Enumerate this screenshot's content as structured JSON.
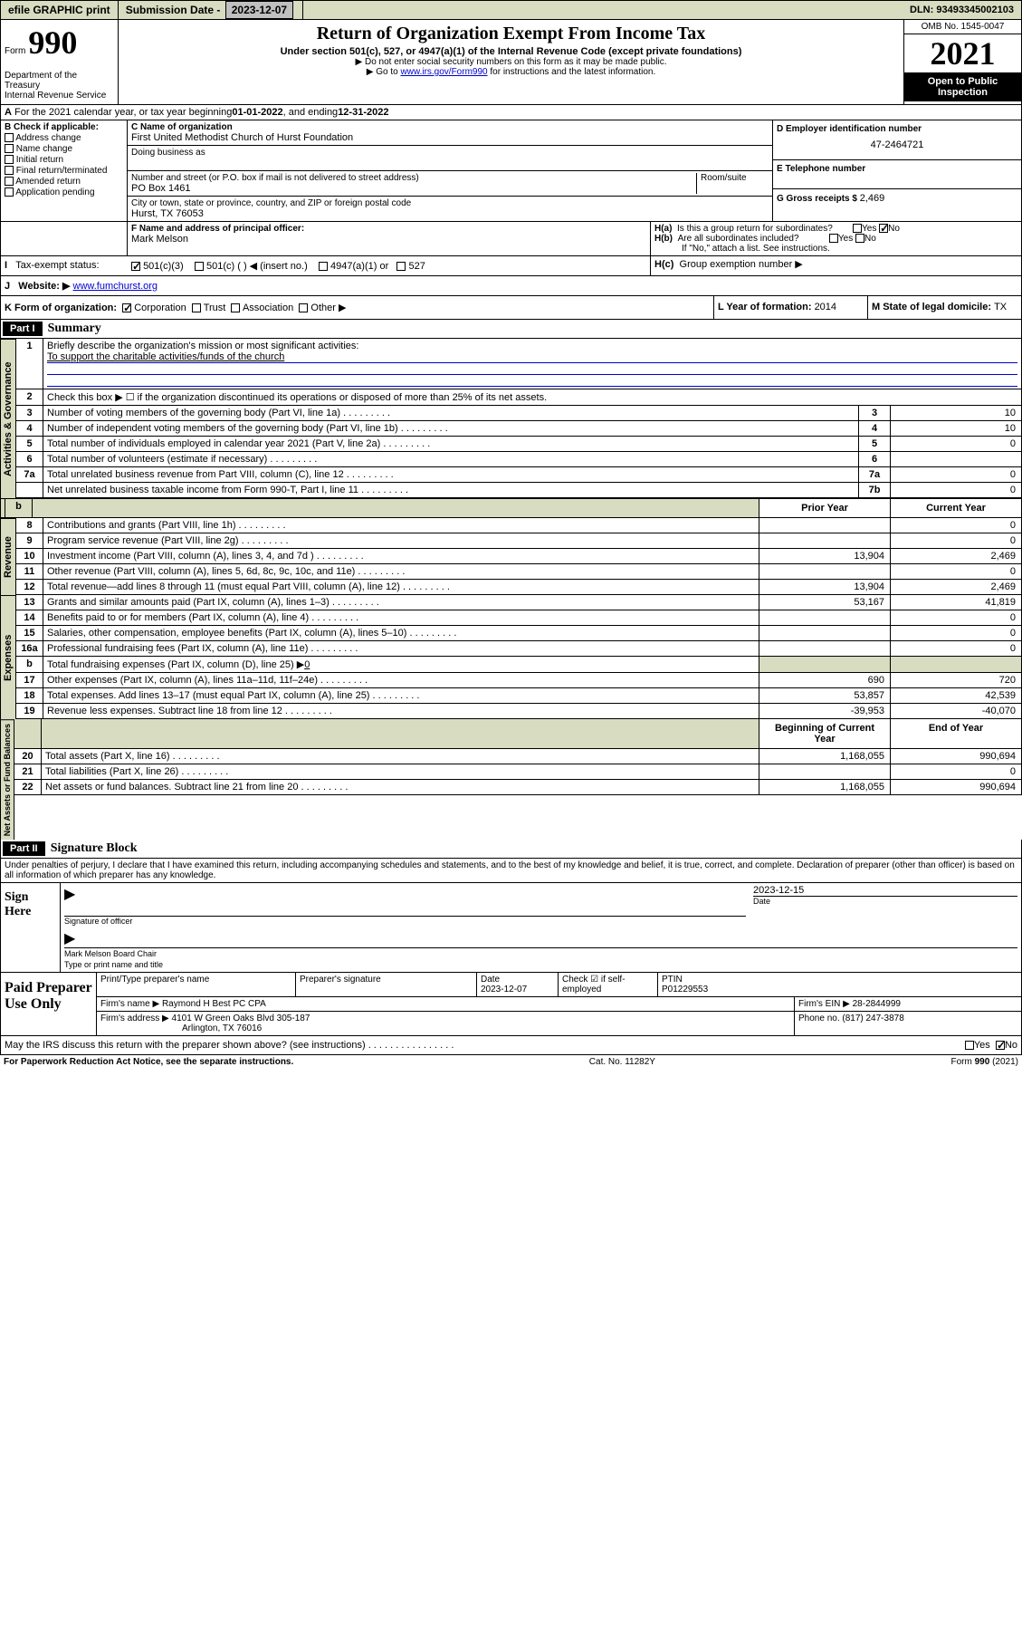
{
  "topbar": {
    "efile": "efile GRAPHIC print",
    "sub_label": "Submission Date - ",
    "sub_date": "2023-12-07",
    "dln": "DLN: 93493345002103"
  },
  "header": {
    "form_word": "Form",
    "form_num": "990",
    "dept": "Department of the Treasury\nInternal Revenue Service",
    "title": "Return of Organization Exempt From Income Tax",
    "subtitle": "Under section 501(c), 527, or 4947(a)(1) of the Internal Revenue Code (except private foundations)",
    "instr1": "▶ Do not enter social security numbers on this form as it may be made public.",
    "instr2_pre": "▶ Go to ",
    "instr2_link": "www.irs.gov/Form990",
    "instr2_post": " for instructions and the latest information.",
    "omb": "OMB No. 1545-0047",
    "year": "2021",
    "open": "Open to Public Inspection"
  },
  "line_a": {
    "text": "For the 2021 calendar year, or tax year beginning ",
    "begin": "01-01-2022",
    "mid": " , and ending ",
    "end": "12-31-2022"
  },
  "col_b": {
    "header": "B Check if applicable:",
    "items": [
      "Address change",
      "Name change",
      "Initial return",
      "Final return/terminated",
      "Amended return",
      "Application pending"
    ]
  },
  "col_c": {
    "name_label": "C Name of organization",
    "name": "First United Methodist Church of Hurst Foundation",
    "dba_label": "Doing business as",
    "addr_label": "Number and street (or P.O. box if mail is not delivered to street address)",
    "room_label": "Room/suite",
    "addr": "PO Box 1461",
    "city_label": "City or town, state or province, country, and ZIP or foreign postal code",
    "city": "Hurst, TX  76053"
  },
  "col_d": {
    "label": "D Employer identification number",
    "value": "47-2464721"
  },
  "col_e": {
    "label": "E Telephone number"
  },
  "col_g": {
    "label": "G Gross receipts $ ",
    "value": "2,469"
  },
  "col_f": {
    "label": "F Name and address of principal officer:",
    "name": "Mark Melson"
  },
  "col_h": {
    "a": "Is this a group return for subordinates?",
    "b": "Are all subordinates included?",
    "b_note": "If \"No,\" attach a list. See instructions.",
    "c": "Group exemption number ▶"
  },
  "row_i": {
    "label": "Tax-exempt status:",
    "opts": [
      "501(c)(3)",
      "501(c) (  ) ◀ (insert no.)",
      "4947(a)(1) or",
      "527"
    ]
  },
  "row_j": {
    "label": "Website: ▶",
    "value": "www.fumchurst.org"
  },
  "row_k": {
    "label": "K Form of organization:",
    "opts": [
      "Corporation",
      "Trust",
      "Association",
      "Other ▶"
    ]
  },
  "row_l": {
    "label": "L Year of formation: ",
    "value": "2014"
  },
  "row_m": {
    "label": "M State of legal domicile: ",
    "value": "TX"
  },
  "part1": {
    "header": "Part I",
    "title": "Summary",
    "q1": "Briefly describe the organization's mission or most significant activities:",
    "q1_ans": "To support the charitable activities/funds of the church",
    "q2": "Check this box ▶ ☐  if the organization discontinued its operations or disposed of more than 25% of its net assets.",
    "rows_gov": [
      {
        "n": "3",
        "d": "Number of voting members of the governing body (Part VI, line 1a)",
        "k": "3",
        "v": "10"
      },
      {
        "n": "4",
        "d": "Number of independent voting members of the governing body (Part VI, line 1b)",
        "k": "4",
        "v": "10"
      },
      {
        "n": "5",
        "d": "Total number of individuals employed in calendar year 2021 (Part V, line 2a)",
        "k": "5",
        "v": "0"
      },
      {
        "n": "6",
        "d": "Total number of volunteers (estimate if necessary)",
        "k": "6",
        "v": ""
      },
      {
        "n": "7a",
        "d": "Total unrelated business revenue from Part VIII, column (C), line 12",
        "k": "7a",
        "v": "0"
      },
      {
        "n": "",
        "d": "Net unrelated business taxable income from Form 990-T, Part I, line 11",
        "k": "7b",
        "v": "0"
      }
    ],
    "col_prior": "Prior Year",
    "col_current": "Current Year",
    "rows_rev": [
      {
        "n": "8",
        "d": "Contributions and grants (Part VIII, line 1h)",
        "p": "",
        "c": "0"
      },
      {
        "n": "9",
        "d": "Program service revenue (Part VIII, line 2g)",
        "p": "",
        "c": "0"
      },
      {
        "n": "10",
        "d": "Investment income (Part VIII, column (A), lines 3, 4, and 7d )",
        "p": "13,904",
        "c": "2,469"
      },
      {
        "n": "11",
        "d": "Other revenue (Part VIII, column (A), lines 5, 6d, 8c, 9c, 10c, and 11e)",
        "p": "",
        "c": "0"
      },
      {
        "n": "12",
        "d": "Total revenue—add lines 8 through 11 (must equal Part VIII, column (A), line 12)",
        "p": "13,904",
        "c": "2,469"
      }
    ],
    "rows_exp": [
      {
        "n": "13",
        "d": "Grants and similar amounts paid (Part IX, column (A), lines 1–3)",
        "p": "53,167",
        "c": "41,819"
      },
      {
        "n": "14",
        "d": "Benefits paid to or for members (Part IX, column (A), line 4)",
        "p": "",
        "c": "0"
      },
      {
        "n": "15",
        "d": "Salaries, other compensation, employee benefits (Part IX, column (A), lines 5–10)",
        "p": "",
        "c": "0"
      },
      {
        "n": "16a",
        "d": "Professional fundraising fees (Part IX, column (A), line 11e)",
        "p": "",
        "c": "0"
      }
    ],
    "row_16b": {
      "n": "b",
      "d": "Total fundraising expenses (Part IX, column (D), line 25) ▶",
      "v": "0"
    },
    "rows_exp2": [
      {
        "n": "17",
        "d": "Other expenses (Part IX, column (A), lines 11a–11d, 11f–24e)",
        "p": "690",
        "c": "720"
      },
      {
        "n": "18",
        "d": "Total expenses. Add lines 13–17 (must equal Part IX, column (A), line 25)",
        "p": "53,857",
        "c": "42,539"
      },
      {
        "n": "19",
        "d": "Revenue less expenses. Subtract line 18 from line 12",
        "p": "-39,953",
        "c": "-40,070"
      }
    ],
    "col_begin": "Beginning of Current Year",
    "col_end": "End of Year",
    "rows_net": [
      {
        "n": "20",
        "d": "Total assets (Part X, line 16)",
        "p": "1,168,055",
        "c": "990,694"
      },
      {
        "n": "21",
        "d": "Total liabilities (Part X, line 26)",
        "p": "",
        "c": "0"
      },
      {
        "n": "22",
        "d": "Net assets or fund balances. Subtract line 21 from line 20",
        "p": "1,168,055",
        "c": "990,694"
      }
    ]
  },
  "sections": {
    "gov": "Activities & Governance",
    "rev": "Revenue",
    "exp": "Expenses",
    "net": "Net Assets or Fund Balances"
  },
  "part2": {
    "header": "Part II",
    "title": "Signature Block",
    "decl": "Under penalties of perjury, I declare that I have examined this return, including accompanying schedules and statements, and to the best of my knowledge and belief, it is true, correct, and complete. Declaration of preparer (other than officer) is based on all information of which preparer has any knowledge.",
    "sign_here": "Sign Here",
    "sig_officer": "Signature of officer",
    "sig_date_label": "Date",
    "sig_date": "2023-12-15",
    "sig_name": "Mark Melson  Board Chair",
    "sig_name_label": "Type or print name and title",
    "paid": "Paid Preparer Use Only",
    "prep_name_label": "Print/Type preparer's name",
    "prep_sig_label": "Preparer's signature",
    "prep_date_label": "Date",
    "prep_date": "2023-12-07",
    "check_label": "Check ☑ if self-employed",
    "ptin_label": "PTIN",
    "ptin": "P01229553",
    "firm_name_label": "Firm's name    ▶ ",
    "firm_name": "Raymond H Best PC CPA",
    "firm_ein_label": "Firm's EIN ▶ ",
    "firm_ein": "28-2844999",
    "firm_addr_label": "Firm's address ▶ ",
    "firm_addr": "4101 W Green Oaks Blvd 305-187",
    "firm_city": "Arlington, TX  76016",
    "phone_label": "Phone no. ",
    "phone": "(817) 247-3878",
    "discuss": "May the IRS discuss this return with the preparer shown above? (see instructions)"
  },
  "footer": {
    "pra": "For Paperwork Reduction Act Notice, see the separate instructions.",
    "cat": "Cat. No. 11282Y",
    "form": "Form 990 (2021)"
  },
  "yn": {
    "yes": "Yes",
    "no": "No"
  }
}
